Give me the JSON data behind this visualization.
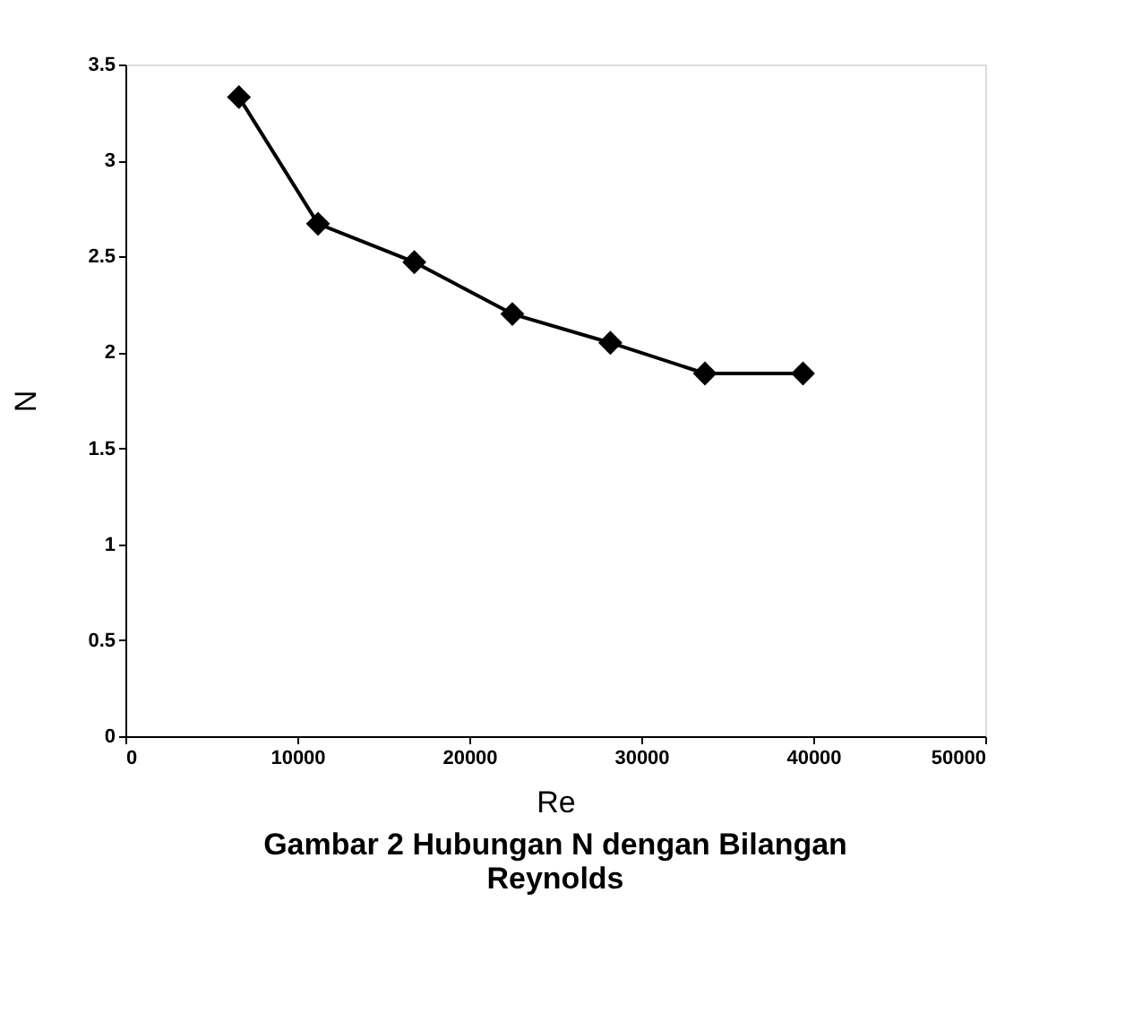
{
  "chart_data": {
    "type": "line",
    "title": "Gambar 2  Hubungan N dengan Bilangan\nReynolds",
    "xlabel": "Re",
    "ylabel": "N",
    "x": [
      6600,
      11200,
      16800,
      22500,
      28200,
      33700,
      39400
    ],
    "series": [
      {
        "color": "#000000",
        "values": [
          3.33,
          2.67,
          2.47,
          2.2,
          2.05,
          1.89,
          1.89
        ]
      }
    ],
    "xlim": [
      0,
      50000
    ],
    "xticks": [
      0,
      10000,
      20000,
      30000,
      40000,
      50000
    ],
    "ylim": [
      0,
      3.5
    ],
    "yticks": [
      0,
      0.5,
      1,
      1.5,
      2,
      2.5,
      3,
      3.5
    ],
    "grid": false,
    "legend": false,
    "marker": "diamond",
    "line_style": "solid"
  }
}
